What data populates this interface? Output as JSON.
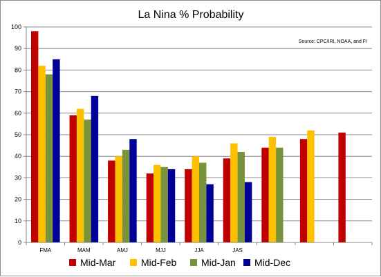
{
  "chart_data": {
    "type": "bar",
    "title": "La Nina % Probability",
    "annotation": "Source: CPC/IRI, NOAA, and FI",
    "categories": [
      "FMA",
      "MAM",
      "AMJ",
      "MJJ",
      "JJA",
      "JAS",
      "",
      "",
      ""
    ],
    "ylim": [
      0,
      100
    ],
    "yticks": [
      0,
      10,
      20,
      30,
      40,
      50,
      60,
      70,
      80,
      90,
      100
    ],
    "grid": true,
    "legend_position": "bottom",
    "series": [
      {
        "name": "Mid-Mar",
        "color": "#c00000",
        "values": [
          98,
          59,
          38,
          32,
          34,
          39,
          44,
          48,
          51
        ]
      },
      {
        "name": "Mid-Feb",
        "color": "#ffc000",
        "values": [
          82,
          62,
          40,
          36,
          40,
          46,
          49,
          52,
          null
        ]
      },
      {
        "name": "Mid-Jan",
        "color": "#77933c",
        "values": [
          78,
          57,
          43,
          35,
          37,
          42,
          44,
          null,
          null
        ]
      },
      {
        "name": "Mid-Dec",
        "color": "#000099",
        "values": [
          85,
          68,
          48,
          34,
          27,
          28,
          null,
          null,
          null
        ]
      }
    ]
  }
}
